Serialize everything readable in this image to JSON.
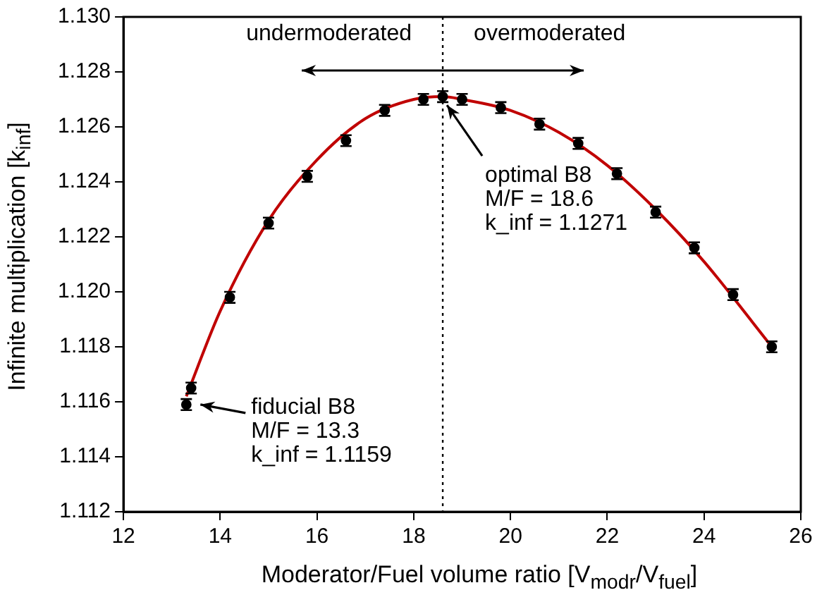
{
  "chart_data": {
    "type": "scatter",
    "xlabel": "Moderator/Fuel volume ratio [V$_{modr}$/V$_{fuel}$]",
    "ylabel": "Infinite multiplication [k$_{inf}$]",
    "series": [
      {
        "color": "#000000",
        "x": [
          13.3,
          13.4,
          14.2,
          15.0,
          15.8,
          16.6,
          17.4,
          18.2,
          18.6,
          19.0,
          19.8,
          20.6,
          21.4,
          22.2,
          23.0,
          23.8,
          24.6,
          25.4
        ],
        "values": [
          1.1159,
          1.1165,
          1.1198,
          1.1225,
          1.1242,
          1.1255,
          1.1266,
          1.127,
          1.1271,
          1.127,
          1.1267,
          1.1261,
          1.1254,
          1.1243,
          1.1229,
          1.1216,
          1.1199,
          1.118
        ],
        "errors": [
          0.0002,
          0.0002,
          0.0002,
          0.0002,
          0.0002,
          0.0002,
          0.0002,
          0.0002,
          0.0002,
          0.0002,
          0.0002,
          0.0002,
          0.0002,
          0.0002,
          0.0002,
          0.0002,
          0.0002,
          0.0002
        ]
      },
      {
        "type": "line",
        "color": "#c00000",
        "marker": "none",
        "line_style": "solid",
        "x": [
          13.3,
          14,
          15,
          16,
          17,
          18,
          18.6,
          19,
          20,
          21,
          22,
          23,
          24,
          25,
          25.4
        ],
        "values": [
          1.1162,
          1.1193,
          1.1226,
          1.1248,
          1.1263,
          1.127,
          1.1271,
          1.127,
          1.1266,
          1.1258,
          1.1246,
          1.123,
          1.1211,
          1.1189,
          1.118
        ]
      }
    ],
    "xlim": [
      12,
      26
    ],
    "xticks": [
      12,
      14,
      16,
      18,
      20,
      22,
      24,
      26
    ],
    "ylim": [
      1.112,
      1.13
    ],
    "yticks": [
      {
        "value": 1.112,
        "label": "1.112"
      },
      {
        "value": 1.114,
        "label": "1.114"
      },
      {
        "value": 1.116,
        "label": "1.116"
      },
      {
        "value": 1.118,
        "label": "1.118"
      },
      {
        "value": 1.12,
        "label": "1.120"
      },
      {
        "value": 1.122,
        "label": "1.122"
      },
      {
        "value": 1.124,
        "label": "1.124"
      },
      {
        "value": 1.126,
        "label": "1.126"
      },
      {
        "value": 1.128,
        "label": "1.128"
      },
      {
        "value": 1.13,
        "label": "1.130"
      }
    ],
    "ref_lines": [
      {
        "axis": "x",
        "value": 18.6,
        "line_style": "dotted",
        "color": "#000000"
      }
    ],
    "annotations": [
      "undermoderated",
      "overmoderated",
      {
        "text": "fiducial B8\nM/F = 13.3\nk_inf = 1.1159",
        "x": 13.3,
        "y": 1.1159
      },
      {
        "text": "optimal B8\nM/F = 18.6\nk_inf = 1.1271",
        "x": 18.6,
        "y": 1.1271
      }
    ],
    "grid": false,
    "legend": false
  }
}
